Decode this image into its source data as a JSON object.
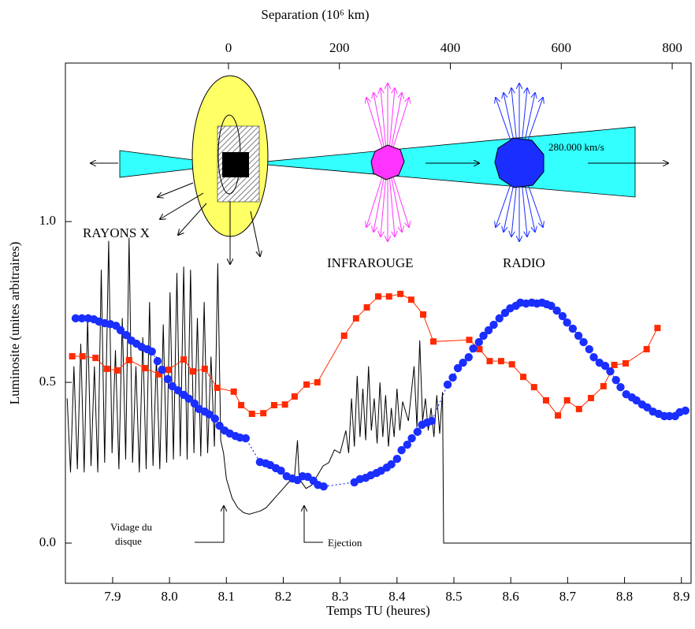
{
  "chart_data": {
    "type": "line",
    "xlabel": "Temps TU (heures)",
    "ylabel": "Luminosite  (unites arbitraires)",
    "x2label": "Separation  (10⁶ km)",
    "xlim": [
      7.817,
      8.917
    ],
    "ylim": [
      -0.125,
      1.493
    ],
    "x2lim": [
      -294,
      834
    ],
    "xticks": [
      7.9,
      {
        "value": 8,
        "label": "8.0"
      },
      8.1,
      8.2,
      8.3,
      8.4,
      8.5,
      8.6,
      8.7,
      8.8,
      8.9
    ],
    "yticks": [
      {
        "value": 0,
        "label": "0.0"
      },
      0.5,
      {
        "value": 1,
        "label": "1.0"
      }
    ],
    "x2ticks": [
      0,
      200,
      400,
      600,
      800
    ],
    "grid": false,
    "annotations": [
      "280.000 km/s",
      "Vidage du",
      "disque",
      "Ejection"
    ],
    "series": [
      {
        "name": "RAYONS X",
        "color": "#000000",
        "marker": "none",
        "dash": "solid",
        "x": [
          7.82,
          7.826,
          7.832,
          7.838,
          7.844,
          7.85,
          7.856,
          7.862,
          7.868,
          7.874,
          7.88,
          7.886,
          7.893,
          7.899,
          7.905,
          7.911,
          7.917,
          7.923,
          7.929,
          7.935,
          7.941,
          7.947,
          7.953,
          7.959,
          7.965,
          7.971,
          7.977,
          7.983,
          7.989,
          7.995,
          8.001,
          8.007,
          8.013,
          8.019,
          8.025,
          8.031,
          8.037,
          8.043,
          8.049,
          8.055,
          8.061,
          8.067,
          8.073,
          8.079,
          8.085,
          8.09,
          8.095,
          8.1,
          8.11,
          8.12,
          8.13,
          8.14,
          8.15,
          8.16,
          8.17,
          8.18,
          8.19,
          8.2,
          8.21,
          8.22,
          8.225,
          8.228,
          8.24,
          8.25,
          8.26,
          8.27,
          8.28,
          8.29,
          8.3,
          8.31,
          8.315,
          8.32,
          8.325,
          8.33,
          8.335,
          8.34,
          8.345,
          8.35,
          8.355,
          8.36,
          8.365,
          8.37,
          8.375,
          8.38,
          8.385,
          8.39,
          8.395,
          8.4,
          8.405,
          8.41,
          8.42,
          8.43,
          8.435,
          8.44,
          8.445,
          8.45,
          8.455,
          8.46,
          8.465,
          8.47,
          8.475,
          8.48,
          8.482,
          8.917
        ],
        "values": [
          0.45,
          0.22,
          0.55,
          0.23,
          0.62,
          0.22,
          0.7,
          0.24,
          0.55,
          0.22,
          0.85,
          0.25,
          0.94,
          0.28,
          0.6,
          0.23,
          0.7,
          0.26,
          0.95,
          0.25,
          0.55,
          0.22,
          0.64,
          0.23,
          0.75,
          0.24,
          0.58,
          0.23,
          0.68,
          0.25,
          0.78,
          0.26,
          0.84,
          0.27,
          0.86,
          0.26,
          0.85,
          0.28,
          0.7,
          0.27,
          0.75,
          0.28,
          0.58,
          0.3,
          0.87,
          0.32,
          0.28,
          0.2,
          0.14,
          0.11,
          0.095,
          0.09,
          0.095,
          0.1,
          0.11,
          0.13,
          0.15,
          0.17,
          0.19,
          0.21,
          0.32,
          0.2,
          0.17,
          0.18,
          0.21,
          0.24,
          0.25,
          0.29,
          0.28,
          0.35,
          0.28,
          0.45,
          0.3,
          0.52,
          0.33,
          0.48,
          0.32,
          0.55,
          0.35,
          0.45,
          0.31,
          0.5,
          0.33,
          0.46,
          0.3,
          0.42,
          0.33,
          0.48,
          0.35,
          0.44,
          0.38,
          0.55,
          0.36,
          0.63,
          0.38,
          0.45,
          0.35,
          0.42,
          0.33,
          0.46,
          0.34,
          0.47,
          0.0,
          0.0
        ]
      },
      {
        "name": "INFRAROUGE",
        "color": "#ff2a00",
        "marker": "square",
        "dash": "solid",
        "x": [
          7.829,
          7.847,
          7.87,
          7.89,
          7.908,
          7.929,
          7.957,
          7.982,
          7.998,
          8.025,
          8.041,
          8.062,
          8.084,
          8.113,
          8.126,
          8.145,
          8.165,
          8.184,
          8.203,
          8.22,
          8.241,
          8.26,
          8.307,
          8.328,
          8.347,
          8.367,
          8.386,
          8.406,
          8.425,
          8.446,
          8.464,
          8.527,
          8.545,
          8.563,
          8.583,
          8.602,
          8.622,
          8.641,
          8.662,
          8.683,
          8.699,
          8.72,
          8.741,
          8.763,
          8.782,
          8.802,
          8.839,
          8.858
        ],
        "values": [
          0.581,
          0.581,
          0.576,
          0.542,
          0.537,
          0.569,
          0.544,
          0.525,
          0.539,
          0.571,
          0.534,
          0.542,
          0.483,
          0.471,
          0.429,
          0.402,
          0.404,
          0.429,
          0.431,
          0.456,
          0.493,
          0.5,
          0.645,
          0.699,
          0.733,
          0.767,
          0.767,
          0.775,
          0.757,
          0.711,
          0.627,
          0.632,
          0.603,
          0.566,
          0.566,
          0.556,
          0.517,
          0.485,
          0.444,
          0.397,
          0.444,
          0.417,
          0.451,
          0.488,
          0.554,
          0.559,
          0.603,
          0.669
        ]
      },
      {
        "name": "RADIO",
        "color": "#1a2eff",
        "marker": "circle",
        "dash": "dotted",
        "x": [
          7.835,
          7.846,
          7.857,
          7.867,
          7.876,
          7.886,
          7.896,
          7.906,
          7.914,
          7.924,
          7.933,
          7.942,
          7.951,
          7.961,
          7.969,
          7.979,
          7.987,
          7.997,
          8.005,
          8.015,
          8.025,
          8.034,
          8.044,
          8.052,
          8.062,
          8.07,
          8.08,
          8.088,
          8.097,
          8.106,
          8.116,
          8.124,
          8.134,
          8.159,
          8.169,
          8.177,
          8.187,
          8.196,
          8.206,
          8.216,
          8.225,
          8.234,
          8.243,
          8.253,
          8.261,
          8.271,
          8.325,
          8.335,
          8.345,
          8.354,
          8.364,
          8.372,
          8.382,
          8.39,
          8.4,
          8.408,
          8.418,
          8.426,
          8.436,
          8.444,
          8.453,
          8.461,
          8.489,
          8.498,
          8.507,
          8.516,
          8.526,
          8.534,
          8.544,
          8.552,
          8.561,
          8.57,
          8.58,
          8.59,
          8.599,
          8.609,
          8.617,
          8.627,
          8.637,
          8.646,
          8.655,
          8.663,
          8.671,
          8.681,
          8.691,
          8.699,
          8.709,
          8.719,
          8.728,
          8.738,
          8.746,
          8.756,
          8.766,
          8.775,
          8.785,
          8.793,
          8.803,
          8.813,
          8.821,
          8.831,
          8.84,
          8.85,
          8.86,
          8.87,
          8.879,
          8.889,
          8.897,
          8.907
        ],
        "values": [
          0.699,
          0.699,
          0.699,
          0.696,
          0.689,
          0.684,
          0.681,
          0.676,
          0.662,
          0.647,
          0.63,
          0.62,
          0.61,
          0.603,
          0.596,
          0.566,
          0.539,
          0.51,
          0.488,
          0.475,
          0.461,
          0.449,
          0.434,
          0.417,
          0.409,
          0.4,
          0.387,
          0.365,
          0.35,
          0.341,
          0.333,
          0.328,
          0.326,
          0.252,
          0.248,
          0.243,
          0.233,
          0.225,
          0.208,
          0.201,
          0.196,
          0.208,
          0.206,
          0.194,
          0.181,
          0.176,
          0.189,
          0.199,
          0.203,
          0.211,
          0.218,
          0.225,
          0.235,
          0.245,
          0.262,
          0.289,
          0.306,
          0.326,
          0.346,
          0.368,
          0.375,
          0.38,
          0.493,
          0.515,
          0.544,
          0.561,
          0.578,
          0.605,
          0.625,
          0.645,
          0.662,
          0.679,
          0.699,
          0.716,
          0.73,
          0.738,
          0.748,
          0.745,
          0.748,
          0.745,
          0.748,
          0.743,
          0.738,
          0.723,
          0.706,
          0.686,
          0.667,
          0.645,
          0.625,
          0.603,
          0.578,
          0.561,
          0.551,
          0.534,
          0.507,
          0.485,
          0.463,
          0.453,
          0.444,
          0.431,
          0.422,
          0.409,
          0.402,
          0.395,
          0.395,
          0.395,
          0.407,
          0.412
        ]
      }
    ]
  }
}
